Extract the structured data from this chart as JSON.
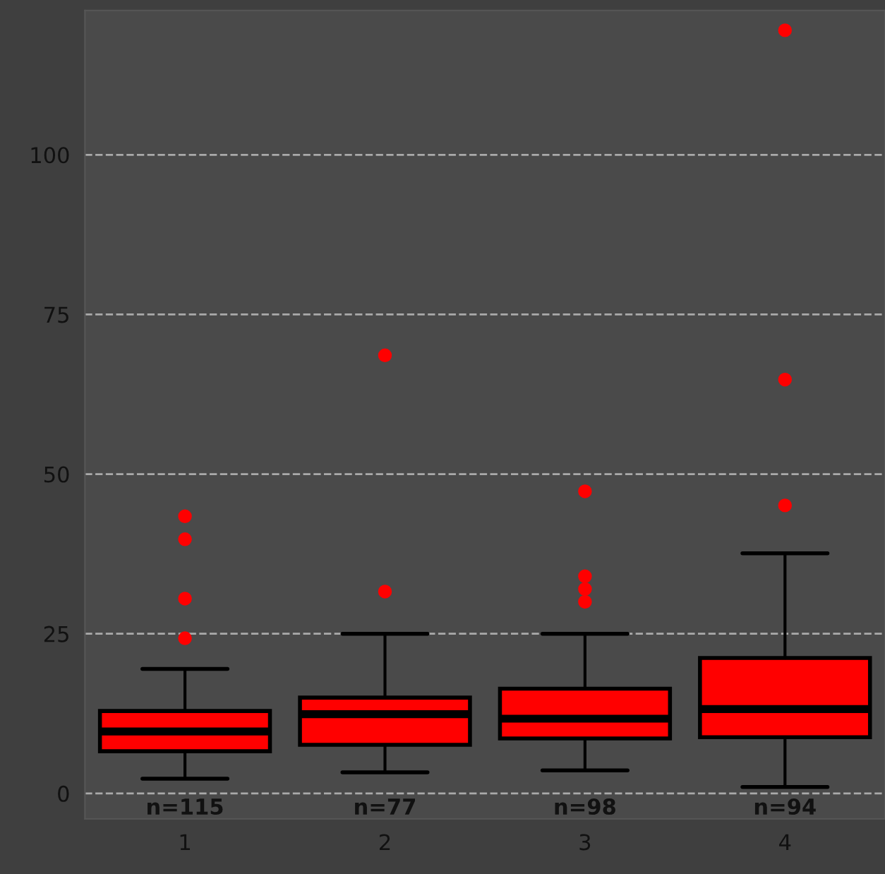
{
  "chart_data": {
    "type": "box",
    "categories": [
      "1",
      "2",
      "3",
      "4"
    ],
    "boxes": [
      {
        "low": 2.3,
        "q1": 6.6,
        "median": 9.7,
        "q3": 12.9,
        "high": 19.5,
        "outliers": [
          43.4,
          39.8,
          30.5,
          24.3
        ]
      },
      {
        "low": 3.3,
        "q1": 7.6,
        "median": 12.4,
        "q3": 15.0,
        "high": 25.0,
        "outliers": [
          68.6,
          31.6
        ]
      },
      {
        "low": 3.6,
        "q1": 8.6,
        "median": 11.7,
        "q3": 16.4,
        "high": 25.0,
        "outliers": [
          47.3,
          34,
          32,
          30
        ]
      },
      {
        "low": 1.0,
        "q1": 8.8,
        "median": 13.2,
        "q3": 21.2,
        "high": 37.6,
        "outliers": [
          119.5,
          64.8,
          45.1
        ]
      }
    ],
    "color": "#ff0000",
    "ylim": [
      -4,
      122.6
    ],
    "yticks": [
      0,
      25,
      50,
      75,
      100
    ],
    "grid": "y",
    "marker": "circle",
    "annotations": [
      "n=115",
      "n=77",
      "n=98",
      "n=94"
    ]
  }
}
